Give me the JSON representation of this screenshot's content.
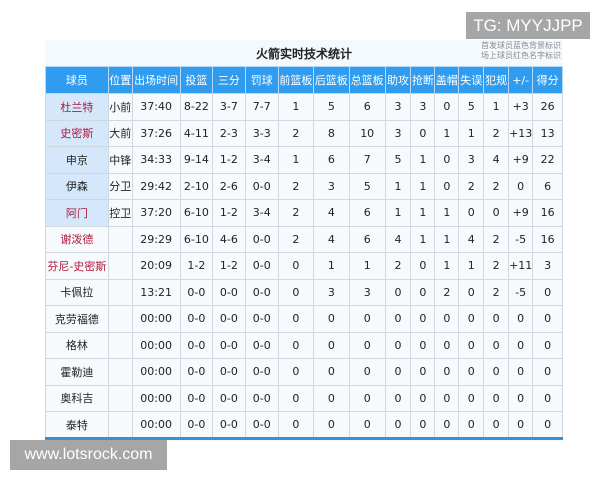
{
  "title": "火箭实时技术统计",
  "legend": [
    "首发球员蓝色背景标识",
    "场上球员红色名字标识"
  ],
  "colors": {
    "header": "#2f9cf0",
    "starter_bg": "#d5e8fb",
    "on_court_name": "#b0183a"
  },
  "headers": [
    "球员",
    "位置",
    "出场时间",
    "投篮",
    "三分",
    "罚球",
    "前篮板",
    "后篮板",
    "总篮板",
    "助攻",
    "抢断",
    "盖帽",
    "失误",
    "犯规",
    "+/-",
    "得分"
  ],
  "rows": [
    {
      "starter": true,
      "on_court": true,
      "cells": [
        "杜兰特",
        "小前",
        "37:40",
        "8-22",
        "3-7",
        "7-7",
        "1",
        "5",
        "6",
        "3",
        "3",
        "0",
        "5",
        "1",
        "+3",
        "26"
      ]
    },
    {
      "starter": true,
      "on_court": true,
      "cells": [
        "史密斯",
        "大前",
        "37:26",
        "4-11",
        "2-3",
        "3-3",
        "2",
        "8",
        "10",
        "3",
        "0",
        "1",
        "1",
        "2",
        "+13",
        "13"
      ]
    },
    {
      "starter": true,
      "on_court": false,
      "cells": [
        "申京",
        "中锋",
        "34:33",
        "9-14",
        "1-2",
        "3-4",
        "1",
        "6",
        "7",
        "5",
        "1",
        "0",
        "3",
        "4",
        "+9",
        "22"
      ]
    },
    {
      "starter": true,
      "on_court": false,
      "cells": [
        "伊森",
        "分卫",
        "29:42",
        "2-10",
        "2-6",
        "0-0",
        "2",
        "3",
        "5",
        "1",
        "1",
        "0",
        "2",
        "2",
        "0",
        "6"
      ]
    },
    {
      "starter": true,
      "on_court": true,
      "cells": [
        "阿门",
        "控卫",
        "37:20",
        "6-10",
        "1-2",
        "3-4",
        "2",
        "4",
        "6",
        "1",
        "1",
        "1",
        "0",
        "0",
        "+9",
        "16"
      ]
    },
    {
      "starter": false,
      "on_court": true,
      "cells": [
        "谢泼德",
        "",
        "29:29",
        "6-10",
        "4-6",
        "0-0",
        "2",
        "4",
        "6",
        "4",
        "1",
        "1",
        "4",
        "2",
        "-5",
        "16"
      ]
    },
    {
      "starter": false,
      "on_court": true,
      "cells": [
        "芬尼-史密斯",
        "",
        "20:09",
        "1-2",
        "1-2",
        "0-0",
        "0",
        "1",
        "1",
        "2",
        "0",
        "1",
        "1",
        "2",
        "+11",
        "3"
      ]
    },
    {
      "starter": false,
      "on_court": false,
      "cells": [
        "卡佩拉",
        "",
        "13:21",
        "0-0",
        "0-0",
        "0-0",
        "0",
        "3",
        "3",
        "0",
        "0",
        "2",
        "0",
        "2",
        "-5",
        "0"
      ]
    },
    {
      "starter": false,
      "on_court": false,
      "cells": [
        "克劳福德",
        "",
        "00:00",
        "0-0",
        "0-0",
        "0-0",
        "0",
        "0",
        "0",
        "0",
        "0",
        "0",
        "0",
        "0",
        "0",
        "0"
      ]
    },
    {
      "starter": false,
      "on_court": false,
      "cells": [
        "格林",
        "",
        "00:00",
        "0-0",
        "0-0",
        "0-0",
        "0",
        "0",
        "0",
        "0",
        "0",
        "0",
        "0",
        "0",
        "0",
        "0"
      ]
    },
    {
      "starter": false,
      "on_court": false,
      "cells": [
        "霍勒迪",
        "",
        "00:00",
        "0-0",
        "0-0",
        "0-0",
        "0",
        "0",
        "0",
        "0",
        "0",
        "0",
        "0",
        "0",
        "0",
        "0"
      ]
    },
    {
      "starter": false,
      "on_court": false,
      "cells": [
        "奥科吉",
        "",
        "00:00",
        "0-0",
        "0-0",
        "0-0",
        "0",
        "0",
        "0",
        "0",
        "0",
        "0",
        "0",
        "0",
        "0",
        "0"
      ]
    },
    {
      "starter": false,
      "on_court": false,
      "cells": [
        "泰特",
        "",
        "00:00",
        "0-0",
        "0-0",
        "0-0",
        "0",
        "0",
        "0",
        "0",
        "0",
        "0",
        "0",
        "0",
        "0",
        "0"
      ]
    }
  ],
  "watermarks": {
    "tg": "TG: MYYJJPP",
    "site": "www.lotsrock.com"
  }
}
